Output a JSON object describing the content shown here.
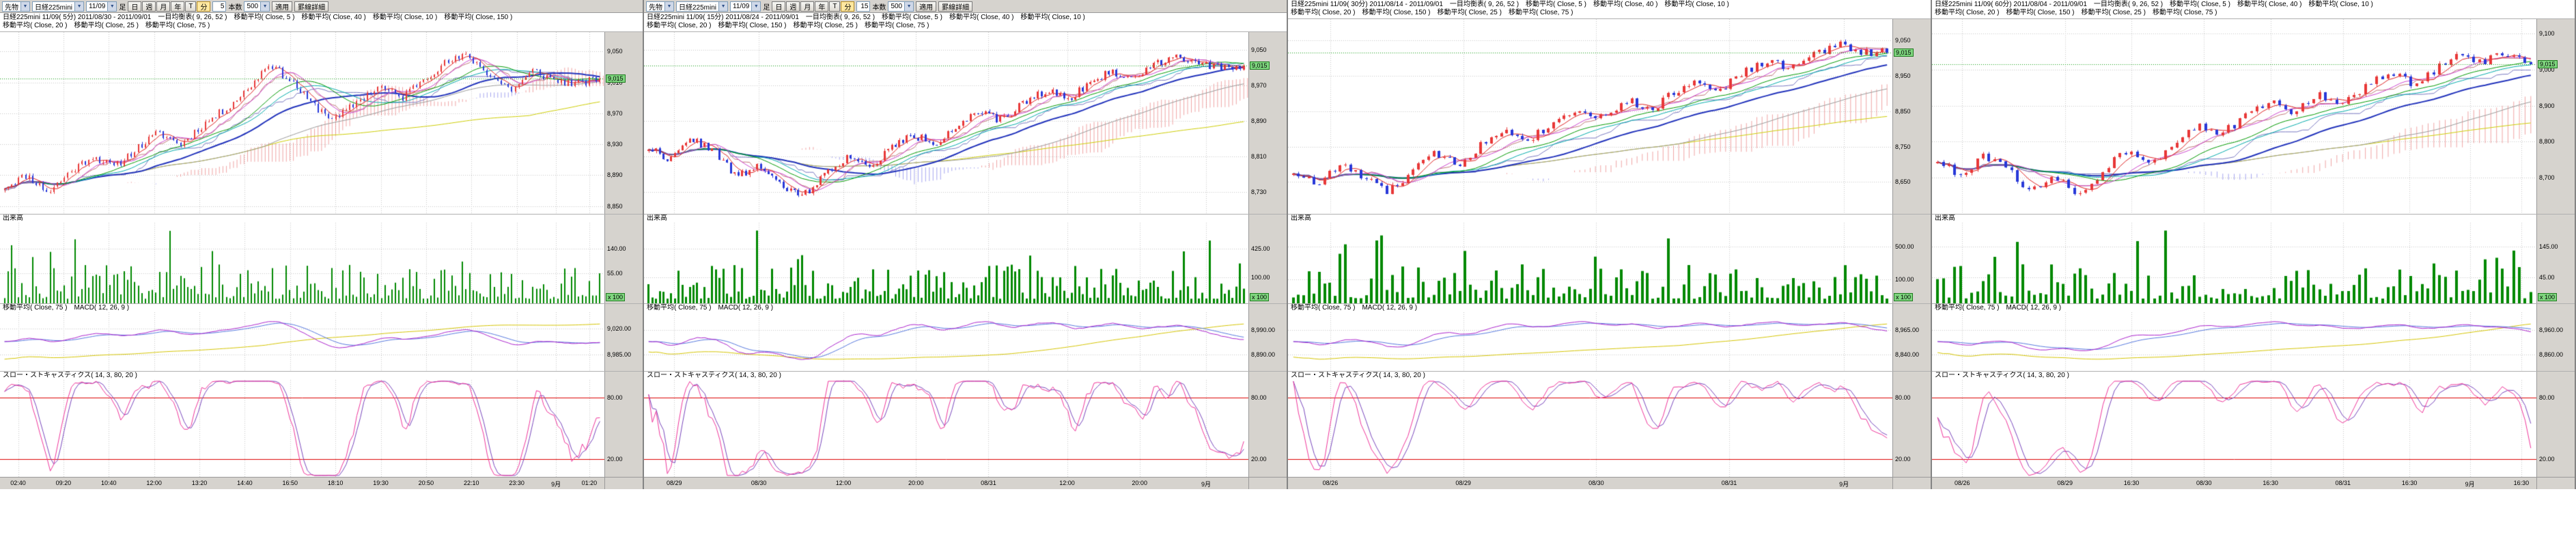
{
  "window": {
    "background": "#d6d3ce",
    "chart_background": "#ffffff"
  },
  "toolbar": {
    "instrument_type": "先物",
    "instrument": "日経225mini",
    "contract_month": "11/09",
    "bar_label": "足",
    "period_buttons": [
      "日",
      "週",
      "月",
      "年",
      "T",
      "分"
    ],
    "active_period": "分",
    "bars_label": "本数",
    "bars_value": "500",
    "apply_label": "適用",
    "detail_label": "罫線詳細"
  },
  "pane_labels": {
    "volume": "出来高",
    "macd": "移動平均( Close, 75 )　MACD( 12, 26, 9 )",
    "stoch": "スロー・ストキャスティクス( 14, 3, 80, 20 )"
  },
  "colors": {
    "candle_up": "#e83838",
    "candle_down": "#2838d8",
    "volume_bar": "#008800",
    "ichimoku_cloud_up": "rgba(225,90,90,0.55)",
    "ichimoku_cloud_down": "rgba(90,90,225,0.55)",
    "ma5": "#dd2222",
    "ma10": "#cc44cc",
    "ma20": "#009900",
    "ma25": "#00aaaa",
    "ma40": "#2233bb",
    "ma75": "#999999",
    "ma150": "#cccc00",
    "macd_line": "#aa22cc",
    "macd_signal": "#5577dd",
    "macd_ma75": "#d4c400",
    "stoch_k": "#ee3399",
    "stoch_d": "#7744bb",
    "stoch_level": "#dd0000",
    "grid": "#c6c6c6",
    "last_price_badge": "#7fd67f"
  },
  "panels": [
    {
      "has_toolbar": true,
      "minutes": "5",
      "title_line1": "日経225mini 11/09( 5分)  2011/08/30 - 2011/09/01　一目均衡表( 9, 26, 52 )　移動平均( Close, 5 )　移動平均( Close, 40 )　移動平均( Close, 10 )　移動平均( Close, 150 )",
      "title_line2": "移動平均( Close, 20 )　移動平均( Close, 25 )　移動平均( Close, 75 )",
      "chart_data": {
        "type": "candlestick",
        "timeframe": "5分",
        "candles": 170,
        "seed": 11,
        "ylim": [
          8840,
          9075
        ],
        "close_anchors": [
          8875,
          8890,
          8868,
          8895,
          8915,
          8900,
          8925,
          8945,
          8930,
          8955,
          8975,
          9000,
          9035,
          9012,
          8980,
          8962,
          8985,
          9005,
          8990,
          9015,
          9035,
          9045,
          9020,
          9000,
          9025,
          9012,
          9008,
          9015
        ],
        "y_ticks": [
          {
            "label": "9,050",
            "value": 9050
          },
          {
            "label": "9,010",
            "value": 9010
          },
          {
            "label": "8,970",
            "value": 8970
          },
          {
            "label": "8,930",
            "value": 8930
          },
          {
            "label": "8,890",
            "value": 8890
          },
          {
            "label": "8,850",
            "value": 8850
          }
        ],
        "last": 9015,
        "last_label": "9,015",
        "volume_ticks": [
          {
            "label": "140.00",
            "f": 0.32
          },
          {
            "label": "55.00",
            "f": 0.63
          }
        ],
        "volume_badge": "x 100",
        "macd_ticks": [
          {
            "label": "9,020.00",
            "f": 0.28
          },
          {
            "label": "8,985.00",
            "f": 0.72
          }
        ],
        "stoch_ticks": [
          {
            "label": "80.00",
            "f": 0.18
          },
          {
            "label": "20.00",
            "f": 0.82
          }
        ],
        "x_labels": [
          {
            "label": "02:40",
            "f": 0.03
          },
          {
            "label": "09:20",
            "f": 0.105
          },
          {
            "label": "10:40",
            "f": 0.18
          },
          {
            "label": "12:00",
            "f": 0.255
          },
          {
            "label": "13:20",
            "f": 0.33
          },
          {
            "label": "14:40",
            "f": 0.405
          },
          {
            "label": "16:50",
            "f": 0.48
          },
          {
            "label": "18:10",
            "f": 0.555
          },
          {
            "label": "19:30",
            "f": 0.63
          },
          {
            "label": "20:50",
            "f": 0.705
          },
          {
            "label": "22:10",
            "f": 0.78
          },
          {
            "label": "23:30",
            "f": 0.855
          },
          {
            "label": "9月",
            "f": 0.92
          },
          {
            "label": "01:20",
            "f": 0.975
          }
        ]
      }
    },
    {
      "has_toolbar": true,
      "minutes": "15",
      "title_line1": "日経225mini 11/09( 15分)  2011/08/24 - 2011/09/01　一目均衡表( 9, 26, 52 )　移動平均( Close, 5 )　移動平均( Close, 40 )　移動平均( Close, 10 )",
      "title_line2": "移動平均( Close, 20 )　移動平均( Close, 150 )　移動平均( Close, 25 )　移動平均( Close, 75 )",
      "chart_data": {
        "type": "candlestick",
        "timeframe": "15分",
        "candles": 160,
        "seed": 22,
        "ylim": [
          8680,
          9090
        ],
        "close_anchors": [
          8830,
          8802,
          8850,
          8822,
          8762,
          8790,
          8742,
          8720,
          8768,
          8810,
          8782,
          8830,
          8858,
          8840,
          8880,
          8908,
          8890,
          8930,
          8958,
          8940,
          8975,
          9000,
          8986,
          9018,
          9040,
          9016,
          9008,
          9015
        ],
        "y_ticks": [
          {
            "label": "9,050",
            "value": 9050
          },
          {
            "label": "8,970",
            "value": 8970
          },
          {
            "label": "8,890",
            "value": 8890
          },
          {
            "label": "8,810",
            "value": 8810
          },
          {
            "label": "8,730",
            "value": 8730
          }
        ],
        "last": 9015,
        "last_label": "9,015",
        "volume_ticks": [
          {
            "label": "425.00",
            "f": 0.32
          },
          {
            "label": "100.00",
            "f": 0.68
          }
        ],
        "volume_badge": "x 100",
        "macd_ticks": [
          {
            "label": "8,990.00",
            "f": 0.3
          },
          {
            "label": "8,890.00",
            "f": 0.72
          }
        ],
        "stoch_ticks": [
          {
            "label": "80.00",
            "f": 0.18
          },
          {
            "label": "20.00",
            "f": 0.82
          }
        ],
        "x_labels": [
          {
            "label": "08/29",
            "f": 0.05
          },
          {
            "label": "08/30",
            "f": 0.19
          },
          {
            "label": "12:00",
            "f": 0.33
          },
          {
            "label": "20:00",
            "f": 0.45
          },
          {
            "label": "08/31",
            "f": 0.57
          },
          {
            "label": "12:00",
            "f": 0.7
          },
          {
            "label": "20:00",
            "f": 0.82
          },
          {
            "label": "9月",
            "f": 0.93
          }
        ]
      }
    },
    {
      "has_toolbar": false,
      "minutes": "30",
      "title_line1": "日経225mini 11/09( 30分)  2011/08/14 - 2011/09/01　一目均衡表( 9, 26, 52 )　移動平均( Close, 5 )　移動平均( Close, 40 )　移動平均( Close, 10 )",
      "title_line2": "移動平均( Close, 20 )　移動平均( Close, 150 )　移動平均( Close, 25 )　移動平均( Close, 75 )",
      "chart_data": {
        "type": "candlestick",
        "timeframe": "30分",
        "candles": 115,
        "seed": 33,
        "ylim": [
          8560,
          9110
        ],
        "close_anchors": [
          8680,
          8642,
          8700,
          8660,
          8622,
          8680,
          8730,
          8702,
          8760,
          8800,
          8772,
          8820,
          8860,
          8832,
          8880,
          8852,
          8900,
          8940,
          8912,
          8960,
          8990,
          8972,
          9010,
          9040,
          9018,
          9015
        ],
        "y_ticks": [
          {
            "label": "9,050",
            "value": 9050
          },
          {
            "label": "8,950",
            "value": 8950
          },
          {
            "label": "8,850",
            "value": 8850
          },
          {
            "label": "8,750",
            "value": 8750
          },
          {
            "label": "8,650",
            "value": 8650
          }
        ],
        "last": 9015,
        "last_label": "9,015",
        "volume_ticks": [
          {
            "label": "500.00",
            "f": 0.3
          },
          {
            "label": "100.00",
            "f": 0.7
          }
        ],
        "volume_badge": "x 100",
        "macd_ticks": [
          {
            "label": "8,965.00",
            "f": 0.3
          },
          {
            "label": "8,840.00",
            "f": 0.72
          }
        ],
        "stoch_ticks": [
          {
            "label": "80.00",
            "f": 0.18
          },
          {
            "label": "20.00",
            "f": 0.82
          }
        ],
        "x_labels": [
          {
            "label": "08/26",
            "f": 0.07
          },
          {
            "label": "08/29",
            "f": 0.29
          },
          {
            "label": "08/30",
            "f": 0.51
          },
          {
            "label": "08/31",
            "f": 0.73
          },
          {
            "label": "9月",
            "f": 0.92
          }
        ]
      }
    },
    {
      "has_toolbar": false,
      "minutes": "60",
      "title_line1": "日経225mini 11/09( 60分)  2011/08/04 - 2011/09/01　一目均衡表( 9, 26, 52 )　移動平均( Close, 5 )　移動平均( Close, 40 )　移動平均( Close, 10 )",
      "title_line2": "移動平均( Close, 20 )　移動平均( Close, 150 )　移動平均( Close, 25 )　移動平均( Close, 75 )",
      "chart_data": {
        "type": "candlestick",
        "timeframe": "60分",
        "candles": 105,
        "seed": 44,
        "ylim": [
          8600,
          9140
        ],
        "close_anchors": [
          8750,
          8700,
          8762,
          8722,
          8660,
          8700,
          8652,
          8722,
          8780,
          8742,
          8800,
          8850,
          8822,
          8870,
          8910,
          8882,
          8930,
          8902,
          8950,
          8990,
          8962,
          9002,
          9040,
          9020,
          9048,
          9015
        ],
        "y_ticks": [
          {
            "label": "9,100",
            "value": 9100
          },
          {
            "label": "9,000",
            "value": 9000
          },
          {
            "label": "8,900",
            "value": 8900
          },
          {
            "label": "8,800",
            "value": 8800
          },
          {
            "label": "8,700",
            "value": 8700
          }
        ],
        "last": 9015,
        "last_label": "9,015",
        "volume_ticks": [
          {
            "label": "145.00",
            "f": 0.3
          },
          {
            "label": "45.00",
            "f": 0.68
          }
        ],
        "volume_badge": "x 100",
        "macd_ticks": [
          {
            "label": "8,960.00",
            "f": 0.3
          },
          {
            "label": "8,860.00",
            "f": 0.72
          }
        ],
        "stoch_ticks": [
          {
            "label": "80.00",
            "f": 0.18
          },
          {
            "label": "20.00",
            "f": 0.82
          }
        ],
        "x_labels": [
          {
            "label": "08/26",
            "f": 0.05
          },
          {
            "label": "08/29",
            "f": 0.22
          },
          {
            "label": "16:30",
            "f": 0.33
          },
          {
            "label": "08/30",
            "f": 0.45
          },
          {
            "label": "16:30",
            "f": 0.56
          },
          {
            "label": "08/31",
            "f": 0.68
          },
          {
            "label": "16:30",
            "f": 0.79
          },
          {
            "label": "9月",
            "f": 0.89
          },
          {
            "label": "16:30",
            "f": 0.975
          }
        ]
      }
    }
  ]
}
